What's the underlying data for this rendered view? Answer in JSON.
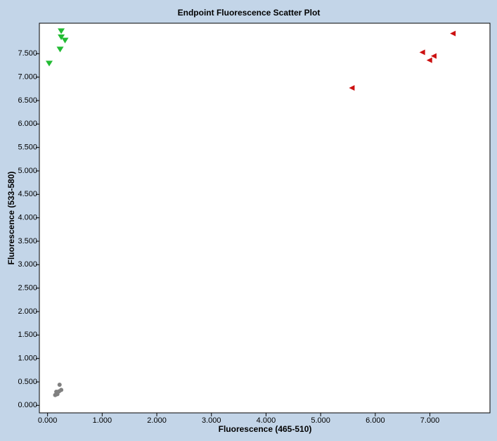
{
  "chart_data": {
    "type": "scatter",
    "title": "Endpoint Fluorescence Scatter Plot",
    "x_label": "Fluorescence (465-510)",
    "y_label": "Fluorescence (533-580)",
    "xlim": [
      -0.15,
      8.1
    ],
    "ylim": [
      -0.16,
      8.15
    ],
    "xticks": [
      {
        "value": 0,
        "label": "0.000"
      },
      {
        "value": 1,
        "label": "1.000"
      },
      {
        "value": 2,
        "label": "2.000"
      },
      {
        "value": 3,
        "label": "3.000"
      },
      {
        "value": 4,
        "label": "4.000"
      },
      {
        "value": 5,
        "label": "5.000"
      },
      {
        "value": 6,
        "label": "6.000"
      },
      {
        "value": 7,
        "label": "7.000"
      }
    ],
    "yticks": [
      {
        "value": 0,
        "label": "0.000"
      },
      {
        "value": 0.5,
        "label": "0.500"
      },
      {
        "value": 1,
        "label": "1.000"
      },
      {
        "value": 1.5,
        "label": "1.500"
      },
      {
        "value": 2,
        "label": "2.000"
      },
      {
        "value": 2.5,
        "label": "2.500"
      },
      {
        "value": 3,
        "label": "3.000"
      },
      {
        "value": 3.5,
        "label": "3.500"
      },
      {
        "value": 4,
        "label": "4.000"
      },
      {
        "value": 4.5,
        "label": "4.500"
      },
      {
        "value": 5,
        "label": "5.000"
      },
      {
        "value": 5.5,
        "label": "5.500"
      },
      {
        "value": 6,
        "label": "6.000"
      },
      {
        "value": 6.5,
        "label": "6.500"
      },
      {
        "value": 7,
        "label": "7.000"
      },
      {
        "value": 7.5,
        "label": "7.500"
      }
    ],
    "series": [
      {
        "color": "#22bb33",
        "marker": "triangle-down",
        "x": [
          0.25,
          0.25,
          0.32,
          0.23,
          0.03
        ],
        "values": [
          7.98,
          7.85,
          7.78,
          7.59,
          7.29
        ]
      },
      {
        "color": "#cc1111",
        "marker": "triangle-left",
        "x": [
          7.42,
          6.86,
          7.07,
          6.99,
          5.57
        ],
        "values": [
          7.93,
          7.53,
          7.45,
          7.36,
          6.77
        ]
      },
      {
        "color": "#808080",
        "marker": "circle",
        "x": [
          0.22,
          0.25,
          0.16,
          0.18,
          0.14,
          0.21
        ],
        "values": [
          0.44,
          0.33,
          0.29,
          0.24,
          0.22,
          0.3
        ]
      }
    ]
  }
}
